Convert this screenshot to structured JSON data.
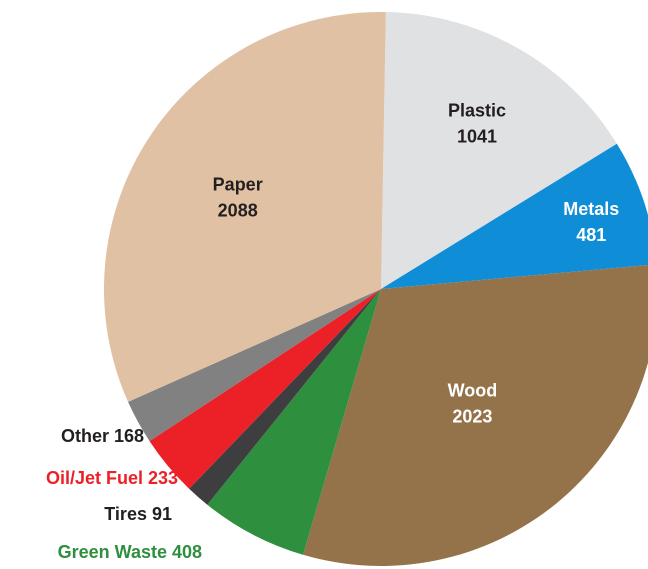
{
  "chart_data": {
    "type": "pie",
    "title": "",
    "slices": [
      {
        "name": "Plastic",
        "value": 1041,
        "value_label": "1041",
        "color": "#e0e1e3",
        "label_color": "#231f20",
        "label_layout": "inside-two-line"
      },
      {
        "name": "Metals",
        "value": 481,
        "value_label": "481",
        "color": "#0f8dd6",
        "label_color": "#ffffff",
        "label_layout": "inside-two-line"
      },
      {
        "name": "Wood",
        "value": 2023,
        "value_label": "2023",
        "color": "#95734a",
        "label_color": "#ffffff",
        "label_layout": "inside-two-line"
      },
      {
        "name": "Green Waste",
        "value": 408,
        "value_label": "408",
        "color": "#2e8f3e",
        "label_color": "#2e8f3e",
        "label_layout": "outside-one-line"
      },
      {
        "name": "Tires",
        "value": 91,
        "value_label": "91",
        "color": "#3e3e40",
        "label_color": "#231f20",
        "label_layout": "outside-one-line"
      },
      {
        "name": "Oil/Jet Fuel",
        "value": 233,
        "value_label": "233",
        "color": "#ec2027",
        "label_color": "#ec2027",
        "label_layout": "outside-one-line"
      },
      {
        "name": "Other",
        "value": 168,
        "value_label": "168",
        "color": "#818181",
        "label_color": "#231f20",
        "label_layout": "outside-one-line"
      },
      {
        "name": "Paper",
        "value": 2088,
        "value_label": "2088",
        "color": "#e1c1a3",
        "label_color": "#231f20",
        "label_layout": "inside-two-line"
      }
    ],
    "start_direction": "top",
    "direction": "clockwise",
    "legend": "none"
  }
}
